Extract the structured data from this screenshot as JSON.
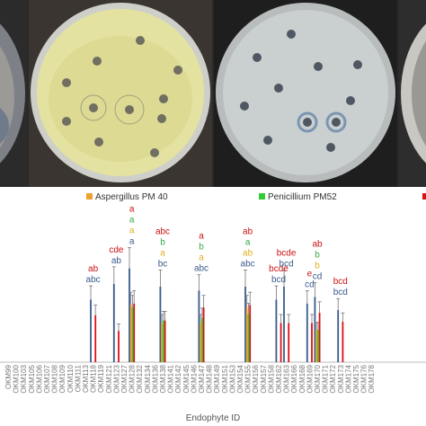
{
  "legend": {
    "items": [
      {
        "name": "Aspergillus PM 40",
        "color": "#f0a030"
      },
      {
        "name": "Penicillium PM52",
        "color": "#33cc33"
      },
      {
        "name": "",
        "color": "#dd1111"
      }
    ]
  },
  "colors": {
    "series1": "#3a5a8c",
    "series2": "#f0a030",
    "series3": "#33cc33",
    "series4": "#dd1111",
    "letters_blue": "#3a5a8c",
    "letters_yellow": "#e0b020",
    "letters_green": "#33aa44",
    "letters_red": "#cc1111"
  },
  "chart_data": {
    "type": "bar",
    "xlabel": "Endophyte ID",
    "ylabel": "",
    "categories": [
      "OKM99",
      "OKM100",
      "OKM103",
      "OKM105",
      "OKM106",
      "OKM107",
      "OKM108",
      "OKM109",
      "OKM110",
      "OKM111",
      "OKM113",
      "OKM118",
      "OKM119",
      "OKM121",
      "OKM123",
      "OKM127",
      "OKM128",
      "OKM132",
      "OKM134",
      "OKM136",
      "OKM138",
      "OKM141",
      "OKM142",
      "OKM145",
      "OKM146",
      "OKM147",
      "OKM148",
      "OKM149",
      "OKM151",
      "OKM153",
      "OKM154",
      "OKM155",
      "OKM156",
      "OKM157",
      "OKM158",
      "OKM162",
      "OKM163",
      "OKM166",
      "OKM168",
      "OKM169",
      "OKM170",
      "OKM171",
      "OKM172",
      "OKM173",
      "OKM174",
      "OKM175",
      "OKM176",
      "OKM178"
    ],
    "ylim": [
      0,
      100
    ],
    "series": [
      {
        "values": [
          0,
          0,
          0,
          0,
          0,
          0,
          0,
          0,
          0,
          0,
          0,
          48,
          0,
          0,
          60,
          0,
          72,
          0,
          0,
          0,
          58,
          0,
          0,
          0,
          0,
          55,
          0,
          0,
          0,
          0,
          0,
          58,
          0,
          0,
          0,
          48,
          58,
          0,
          0,
          45,
          50,
          0,
          0,
          40,
          0,
          0,
          0,
          0
        ]
      },
      {
        "values": [
          0,
          0,
          0,
          0,
          0,
          0,
          0,
          0,
          0,
          0,
          0,
          0,
          0,
          0,
          0,
          0,
          44,
          0,
          0,
          0,
          30,
          0,
          0,
          0,
          0,
          30,
          0,
          0,
          0,
          0,
          0,
          42,
          0,
          0,
          0,
          0,
          0,
          0,
          0,
          0,
          25,
          0,
          0,
          0,
          0,
          0,
          0,
          0
        ]
      },
      {
        "values": [
          0,
          0,
          0,
          0,
          0,
          0,
          0,
          0,
          0,
          0,
          0,
          0,
          0,
          0,
          0,
          0,
          42,
          0,
          0,
          0,
          32,
          0,
          0,
          0,
          0,
          34,
          0,
          0,
          0,
          0,
          0,
          37,
          0,
          0,
          0,
          0,
          0,
          0,
          0,
          0,
          25,
          0,
          0,
          0,
          0,
          0,
          0,
          0
        ]
      },
      {
        "values": [
          0,
          0,
          0,
          0,
          0,
          0,
          0,
          0,
          0,
          0,
          0,
          36,
          0,
          0,
          24,
          0,
          45,
          0,
          0,
          0,
          32,
          0,
          0,
          0,
          0,
          42,
          0,
          0,
          0,
          0,
          0,
          44,
          0,
          0,
          0,
          30,
          30,
          0,
          0,
          30,
          38,
          0,
          0,
          31,
          0,
          0,
          0,
          0
        ]
      }
    ],
    "significance_letters": [
      {
        "category": "OKM118",
        "letters": [
          {
            "text": "ab",
            "color": "red"
          },
          {
            "text": "abc",
            "color": "blue"
          }
        ]
      },
      {
        "category": "OKM123",
        "letters": [
          {
            "text": "cde",
            "color": "red"
          },
          {
            "text": "ab",
            "color": "blue"
          }
        ]
      },
      {
        "category": "OKM128",
        "letters": [
          {
            "text": "a",
            "color": "red"
          },
          {
            "text": "a",
            "color": "green"
          },
          {
            "text": "a",
            "color": "yellow"
          },
          {
            "text": "a",
            "color": "blue"
          }
        ]
      },
      {
        "category": "OKM138",
        "letters": [
          {
            "text": "abc",
            "color": "red"
          },
          {
            "text": "b",
            "color": "green"
          },
          {
            "text": "a",
            "color": "yellow"
          },
          {
            "text": "bc",
            "color": "blue"
          }
        ]
      },
      {
        "category": "OKM147",
        "letters": [
          {
            "text": "a",
            "color": "red"
          },
          {
            "text": "b",
            "color": "green"
          },
          {
            "text": "a",
            "color": "yellow"
          },
          {
            "text": "abc",
            "color": "blue"
          }
        ]
      },
      {
        "category": "OKM155",
        "letters": [
          {
            "text": "ab",
            "color": "red"
          },
          {
            "text": "a",
            "color": "green"
          },
          {
            "text": "ab",
            "color": "yellow"
          },
          {
            "text": "abc",
            "color": "blue"
          }
        ]
      },
      {
        "category": "OKM162",
        "letters": [
          {
            "text": "bcde",
            "color": "red"
          },
          {
            "text": "bcd",
            "color": "blue"
          }
        ]
      },
      {
        "category": "OKM163",
        "letters": [
          {
            "text": "bcde",
            "color": "red"
          },
          {
            "text": "bcd",
            "color": "blue"
          }
        ]
      },
      {
        "category": "OKM169",
        "letters": [
          {
            "text": "e",
            "color": "red"
          },
          {
            "text": "cd",
            "color": "blue"
          }
        ]
      },
      {
        "category": "OKM170",
        "letters": [
          {
            "text": "ab",
            "color": "red"
          },
          {
            "text": "b",
            "color": "green"
          },
          {
            "text": "b",
            "color": "yellow"
          },
          {
            "text": "cd",
            "color": "blue"
          }
        ]
      },
      {
        "category": "OKM173",
        "letters": [
          {
            "text": "bcd",
            "color": "red"
          },
          {
            "text": "bcd",
            "color": "blue"
          }
        ]
      }
    ]
  }
}
